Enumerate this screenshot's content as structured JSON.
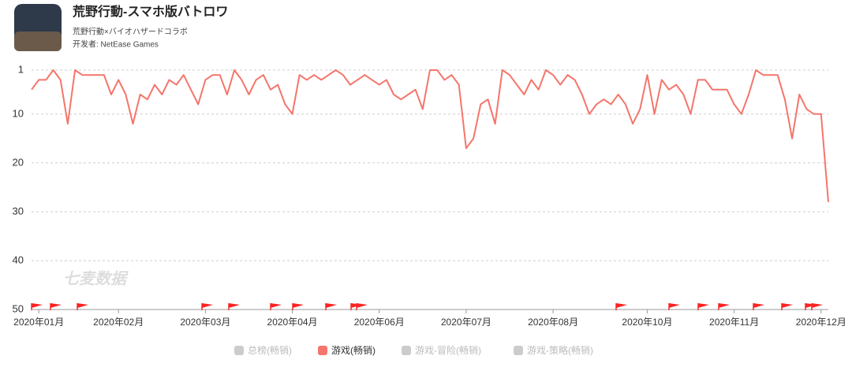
{
  "header": {
    "title": "荒野行動-スマホ版バトロワ",
    "subtitle": "荒野行動×バイオハザードコラボ",
    "developer": "开发者: NetEase Games"
  },
  "chart_data": {
    "type": "line",
    "watermark": "七麦数据",
    "categories": [
      null,
      "2020年01月",
      null,
      null,
      null,
      null,
      null,
      null,
      null,
      null,
      null,
      null,
      "2020年02月",
      null,
      null,
      null,
      null,
      null,
      null,
      null,
      null,
      null,
      null,
      null,
      "2020年03月",
      null,
      null,
      null,
      null,
      null,
      null,
      null,
      null,
      null,
      null,
      null,
      "2020年04月",
      null,
      null,
      null,
      null,
      null,
      null,
      null,
      null,
      null,
      null,
      null,
      "2020年06月",
      null,
      null,
      null,
      null,
      null,
      null,
      null,
      null,
      null,
      null,
      null,
      "2020年07月",
      null,
      null,
      null,
      null,
      null,
      null,
      null,
      null,
      null,
      null,
      null,
      "2020年08月",
      null,
      null,
      null,
      null,
      null,
      null,
      null,
      null,
      null,
      null,
      null,
      null,
      "2020年10月",
      null,
      null,
      null,
      null,
      null,
      null,
      null,
      null,
      null,
      null,
      null,
      "2020年11月",
      null,
      null,
      null,
      null,
      null,
      null,
      null,
      null,
      null,
      null,
      null,
      "2020年12月",
      null
    ],
    "series": [
      {
        "name": "游戏(畅销)",
        "color": "#f4756b",
        "values": [
          5,
          3,
          3,
          1,
          3,
          12,
          1,
          2,
          2,
          2,
          2,
          6,
          3,
          6,
          12,
          6,
          7,
          4,
          6,
          3,
          4,
          2,
          5,
          8,
          3,
          2,
          2,
          6,
          1,
          3,
          6,
          3,
          2,
          5,
          4,
          8,
          10,
          2,
          3,
          2,
          3,
          2,
          1,
          2,
          4,
          3,
          2,
          3,
          4,
          3,
          6,
          7,
          6,
          5,
          9,
          1,
          1,
          3,
          2,
          4,
          17,
          15,
          8,
          7,
          12,
          1,
          2,
          4,
          6,
          3,
          5,
          1,
          2,
          4,
          2,
          3,
          6,
          10,
          8,
          7,
          8,
          6,
          8,
          12,
          9,
          2,
          10,
          3,
          5,
          4,
          6,
          10,
          3,
          3,
          5,
          5,
          5,
          8,
          10,
          6,
          1,
          2,
          2,
          2,
          7,
          15,
          6,
          9,
          10,
          10,
          28
        ]
      }
    ],
    "legend": [
      {
        "name": "总榜(畅销)",
        "color": "#cccccc"
      },
      {
        "name": "游戏(畅销)",
        "color": "#f4756b"
      },
      {
        "name": "游戏-冒险(畅销)",
        "color": "#cccccc"
      },
      {
        "name": "游戏-策略(畅销)",
        "color": "#cccccc"
      }
    ],
    "ylim": [
      1,
      50
    ],
    "y_inverted": true,
    "yticks": [
      1,
      10,
      20,
      30,
      40,
      50
    ],
    "grid": true
  }
}
